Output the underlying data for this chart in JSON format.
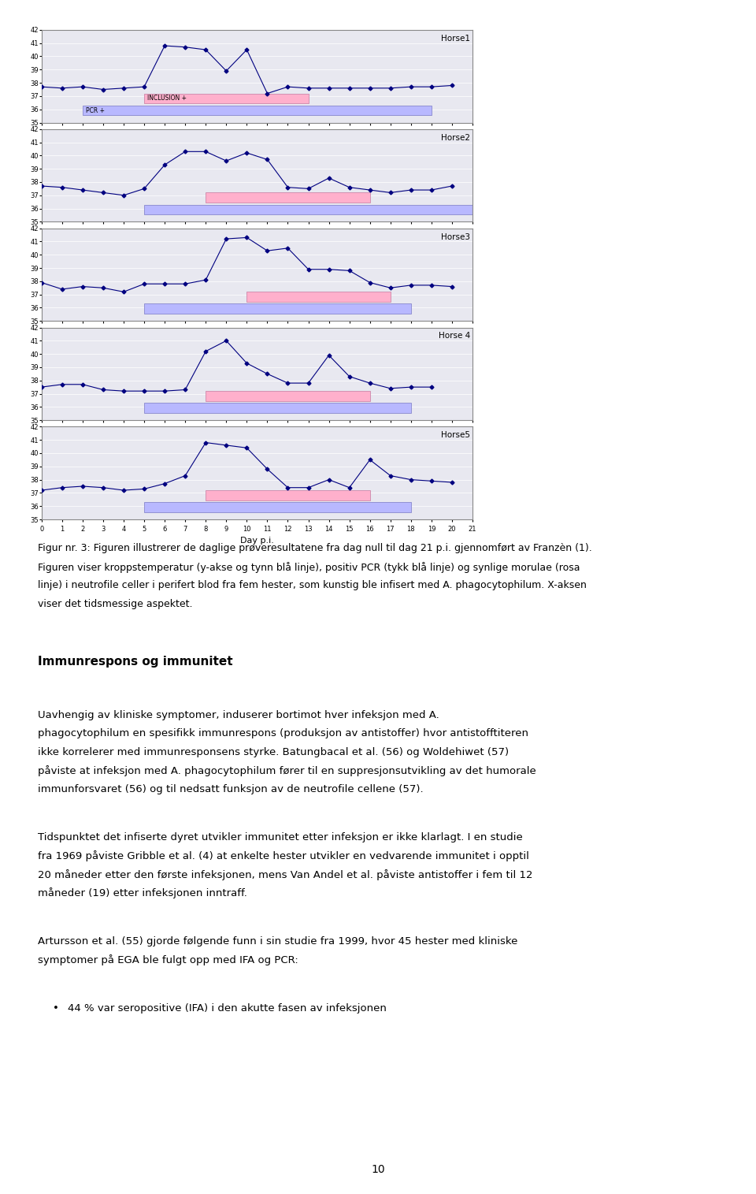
{
  "horses": [
    {
      "name": "Horse1",
      "temp_line": [
        37.7,
        37.6,
        37.7,
        37.5,
        37.6,
        37.7,
        40.8,
        40.7,
        40.5,
        38.9,
        40.5,
        37.2,
        37.7,
        37.6,
        37.6,
        37.6,
        37.6,
        37.6,
        37.7,
        37.7,
        37.8
      ],
      "pcr_start": 2,
      "pcr_end": 19,
      "inclusion_start": 5,
      "inclusion_end": 13
    },
    {
      "name": "Horse2",
      "temp_line": [
        37.7,
        37.6,
        37.4,
        37.2,
        37.0,
        37.5,
        39.3,
        40.3,
        40.3,
        39.6,
        40.2,
        39.7,
        37.6,
        37.5,
        38.3,
        37.6,
        37.4,
        37.2,
        37.4,
        37.4,
        37.7
      ],
      "pcr_start": 5,
      "pcr_end": 21,
      "inclusion_start": 8,
      "inclusion_end": 16
    },
    {
      "name": "Horse3",
      "temp_line": [
        37.9,
        37.4,
        37.6,
        37.5,
        37.2,
        37.8,
        37.8,
        37.8,
        38.1,
        41.2,
        41.3,
        40.3,
        40.5,
        38.9,
        38.9,
        38.8,
        37.9,
        37.5,
        37.7,
        37.7,
        37.6
      ],
      "pcr_start": 5,
      "pcr_end": 18,
      "inclusion_start": 10,
      "inclusion_end": 17
    },
    {
      "name": "Horse 4",
      "temp_line": [
        37.5,
        37.7,
        37.7,
        37.3,
        37.2,
        37.2,
        37.2,
        37.3,
        40.2,
        41.0,
        39.3,
        38.5,
        37.8,
        37.8,
        39.9,
        38.3,
        37.8,
        37.4,
        37.5,
        37.5
      ],
      "pcr_start": 5,
      "pcr_end": 18,
      "inclusion_start": 8,
      "inclusion_end": 16
    },
    {
      "name": "Horse5",
      "temp_line": [
        37.2,
        37.4,
        37.5,
        37.4,
        37.2,
        37.3,
        37.7,
        38.3,
        40.8,
        40.6,
        40.4,
        38.8,
        37.4,
        37.4,
        38.0,
        37.4,
        39.5,
        38.3,
        38.0,
        37.9,
        37.8
      ],
      "pcr_start": 5,
      "pcr_end": 18,
      "inclusion_start": 8,
      "inclusion_end": 16
    }
  ],
  "ylim": [
    35,
    42
  ],
  "yticks": [
    35,
    36,
    37,
    38,
    39,
    40,
    41,
    42
  ],
  "xlim": [
    0,
    21
  ],
  "xticks": [
    0,
    1,
    2,
    3,
    4,
    5,
    6,
    7,
    8,
    9,
    10,
    11,
    12,
    13,
    14,
    15,
    16,
    17,
    18,
    19,
    20,
    21
  ],
  "xlabel": "Day p.i.",
  "line_color": "#000080",
  "marker": "D",
  "marker_size": 2.5,
  "pcr_color": "#b8b8ff",
  "pcr_edge": "#8888cc",
  "inclusion_color": "#ffb0cc",
  "inclusion_edge": "#cc88aa",
  "plot_bg": "#e8e8f0",
  "plot_border": "#888888",
  "caption_text": "Figur nr. 3: Figuren illustrerer de daglige prøveresultatene fra dag null til dag 21 p.i. gjennomført av Franzèn (1).",
  "caption2": "Figuren viser kroppstemperatur (y-akse og tynn blå linje), positiv PCR (tykk blå linje) og synlige morulae (rosa",
  "caption3": "linje) i neutrofile celler i perifert blod fra fem hester, som kunstig ble infisert med A. phagocytophilum. X-aksen",
  "caption4": "viser det tidsmessige aspektet.",
  "section_title": "Immunrespons og immunitet",
  "para1": "Uavhengig av kliniske symptomer, induserer bortimot hver infeksjon med A. phagocytophilum en spesifikk immunrespons (produksjon av antistoffer) hvor antistofftiteren ikke korrelerer med immunresponsens styrke. Batungbacal et al. (56) og Woldehiwet (57) påviste at infeksjon med A. phagocytophilum fører til en suppresjonsutvikling av det humorale immunforsvaret (56) og til nedsatt funksjon av de neutrofile cellene (57).",
  "para2": "Tidspunktet det infiserte dyret utvikler immunitet etter infeksjon er ikke klarlagt. I en studie fra 1969 påviste Gribble et al. (4) at enkelte hester utvikler en vedvarende immunitet i opptil 20 måneder etter den første infeksjonen, mens Van Andel et al. påviste antistoffer i fem til 12 måneder (19) etter infeksjonen inntraff.",
  "para3": "Artursson et al. (55) gjorde følgende funn i sin studie fra 1999, hvor 45 hester med kliniske symptomer på EGA ble fulgt opp med IFA og PCR:",
  "bullet1": "44 % var seropositive (IFA) i den akutte fasen av infeksjonen",
  "page_number": "10",
  "pcr_label": "PCR +",
  "inclusion_label": "INCLUSION +"
}
